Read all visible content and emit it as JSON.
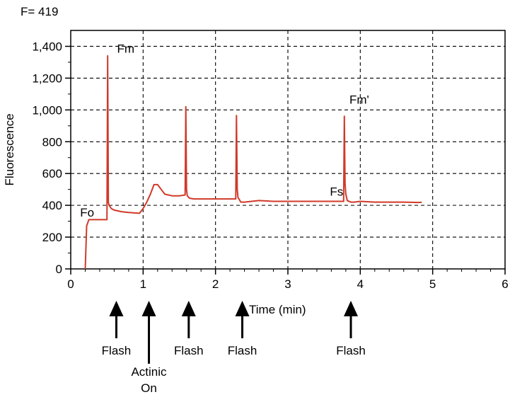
{
  "readout": "F= 419",
  "chart_data": {
    "type": "line",
    "title": "",
    "xlabel": "Time (min)",
    "ylabel": "Fluorescence",
    "xlim": [
      0,
      6
    ],
    "ylim": [
      0,
      1500
    ],
    "xticks": [
      0,
      1,
      2,
      3,
      4,
      5,
      6
    ],
    "xtick_labels": [
      "0",
      "1",
      "2",
      "3",
      "4",
      "5",
      "6"
    ],
    "yticks": [
      0,
      200,
      400,
      600,
      800,
      1000,
      1200,
      1400
    ],
    "ytick_labels": [
      "0",
      "200",
      "400",
      "600",
      "800",
      "1,000",
      "1,200",
      "1,400"
    ],
    "grid": true,
    "line_color": "#d03a2a",
    "series": [
      {
        "x": [
          0.2,
          0.22,
          0.25,
          0.5,
          0.51,
          0.52,
          0.53,
          0.56,
          0.6,
          0.7,
          0.8,
          0.95,
          1.0,
          1.05,
          1.1,
          1.15,
          1.2,
          1.25,
          1.3,
          1.4,
          1.5,
          1.58,
          1.59,
          1.6,
          1.61,
          1.64,
          1.7,
          1.8,
          2.0,
          2.28,
          2.29,
          2.3,
          2.31,
          2.35,
          2.4,
          2.5,
          2.6,
          2.8,
          3.0,
          3.5,
          3.77,
          3.78,
          3.79,
          3.8,
          3.82,
          3.87,
          3.92,
          4.0,
          4.2,
          4.4,
          4.6,
          4.8,
          4.85
        ],
        "y": [
          0,
          270,
          310,
          310,
          1340,
          420,
          400,
          380,
          370,
          360,
          355,
          350,
          380,
          420,
          470,
          530,
          530,
          500,
          470,
          460,
          460,
          465,
          1020,
          500,
          460,
          445,
          440,
          440,
          440,
          440,
          965,
          500,
          450,
          420,
          420,
          425,
          430,
          425,
          425,
          425,
          425,
          960,
          540,
          470,
          430,
          420,
          420,
          425,
          420,
          420,
          420,
          418,
          419
        ]
      }
    ],
    "annotations": [
      {
        "text": "Fo",
        "x": 0.13,
        "y": 330
      },
      {
        "text": "Fm",
        "x": 0.64,
        "y": 1360
      },
      {
        "text": "Fm'",
        "x": 3.85,
        "y": 1040
      },
      {
        "text": "Fs",
        "x": 3.58,
        "y": 460
      }
    ],
    "events": [
      {
        "x": 0.63,
        "lines": [
          "Flash"
        ]
      },
      {
        "x": 1.08,
        "lines": [
          "Actinic",
          "On"
        ]
      },
      {
        "x": 1.63,
        "lines": [
          "Flash"
        ]
      },
      {
        "x": 2.37,
        "lines": [
          "Flash"
        ]
      },
      {
        "x": 3.87,
        "lines": [
          "Flash"
        ]
      }
    ]
  }
}
